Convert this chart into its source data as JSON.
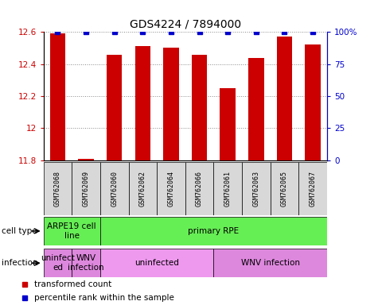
{
  "title": "GDS4224 / 7894000",
  "samples": [
    "GSM762068",
    "GSM762069",
    "GSM762060",
    "GSM762062",
    "GSM762064",
    "GSM762066",
    "GSM762061",
    "GSM762063",
    "GSM762065",
    "GSM762067"
  ],
  "transformed_counts": [
    12.59,
    11.81,
    12.46,
    12.51,
    12.5,
    12.46,
    12.25,
    12.44,
    12.57,
    12.52
  ],
  "percentile_ranks": [
    100,
    100,
    100,
    100,
    100,
    100,
    100,
    100,
    100,
    100
  ],
  "ylim": [
    11.8,
    12.6
  ],
  "yticks": [
    11.8,
    12.0,
    12.2,
    12.4,
    12.6
  ],
  "ytick_labels": [
    "11.8",
    "12",
    "12.2",
    "12.4",
    "12.6"
  ],
  "y2lim": [
    0,
    100
  ],
  "y2ticks": [
    0,
    25,
    50,
    75,
    100
  ],
  "y2ticklabels": [
    "0",
    "25",
    "50",
    "75",
    "100%"
  ],
  "bar_color": "#cc0000",
  "dot_color": "#0000cc",
  "bar_width": 0.55,
  "cell_type_groups": [
    {
      "label": "ARPE19 cell\nline",
      "color": "#66ee55",
      "start": 0,
      "end": 2
    },
    {
      "label": "primary RPE",
      "color": "#66ee55",
      "start": 2,
      "end": 10
    }
  ],
  "infection_groups": [
    {
      "label": "uninfect\ned",
      "color": "#dd88dd",
      "start": 0,
      "end": 1
    },
    {
      "label": "WNV\ninfection",
      "color": "#dd88dd",
      "start": 1,
      "end": 2
    },
    {
      "label": "uninfected",
      "color": "#ee99ee",
      "start": 2,
      "end": 6
    },
    {
      "label": "WNV infection",
      "color": "#dd88dd",
      "start": 6,
      "end": 10
    }
  ],
  "legend_items": [
    {
      "label": "transformed count",
      "color": "#cc0000",
      "marker": "s"
    },
    {
      "label": "percentile rank within the sample",
      "color": "#0000cc",
      "marker": "s"
    }
  ],
  "background_color": "#ffffff",
  "grid_color": "#888888",
  "tick_color_left": "#cc0000",
  "tick_color_right": "#0000cc",
  "label_box_color": "#d8d8d8",
  "title_fontsize": 10,
  "tick_fontsize": 7.5,
  "sample_fontsize": 6,
  "label_fontsize": 7.5
}
